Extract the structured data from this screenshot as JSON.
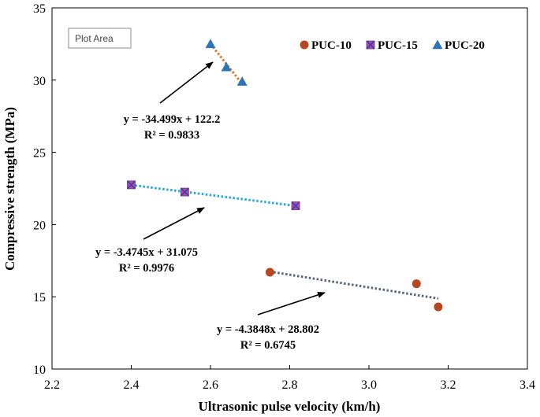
{
  "tooltip": {
    "label": "Plot Area"
  },
  "chart_data": {
    "type": "scatter",
    "xlabel": "Ultrasonic pulse velocity (km/h)",
    "ylabel": "Compressive strength (MPa)",
    "xlim": [
      2.2,
      3.4
    ],
    "ylim": [
      10,
      35
    ],
    "xticks": [
      "2.2",
      "2.4",
      "2.6",
      "2.8",
      "3.0",
      "3.2",
      "3.4"
    ],
    "yticks": [
      "10",
      "15",
      "20",
      "25",
      "30",
      "35"
    ],
    "legend_position": "top-right",
    "grid": false,
    "series": [
      {
        "name": "PUC-10",
        "marker": "circle",
        "color": "#b5481f",
        "trend_color": "#5a6378",
        "x": [
          2.75,
          3.12,
          3.175
        ],
        "y": [
          16.7,
          15.9,
          14.3
        ],
        "trend": {
          "x": [
            2.75,
            3.175
          ],
          "slope": -4.3848,
          "intercept": 28.802
        },
        "equation": "y = -4.3848x + 28.802",
        "r2": "R² = 0.6745"
      },
      {
        "name": "PUC-15",
        "marker": "square-x",
        "color": "#b04ca8",
        "trend_color": "#2aa7e0",
        "x": [
          2.4,
          2.535,
          2.815
        ],
        "y": [
          22.75,
          22.25,
          21.3
        ],
        "trend": {
          "x": [
            2.4,
            2.815
          ],
          "slope": -3.4745,
          "intercept": 31.075
        },
        "equation": "y = -3.4745x + 31.075",
        "r2": "R² = 0.9976"
      },
      {
        "name": "PUC-20",
        "marker": "triangle",
        "color": "#2e75b6",
        "trend_color": "#e0782a",
        "x": [
          2.6,
          2.64,
          2.68
        ],
        "y": [
          32.5,
          30.9,
          29.9
        ],
        "trend": {
          "x": [
            2.6,
            2.68
          ],
          "slope": -34.499,
          "intercept": 122.2
        },
        "equation": "y = -34.499x + 122.2",
        "r2": "R² = 0.9833"
      }
    ]
  }
}
